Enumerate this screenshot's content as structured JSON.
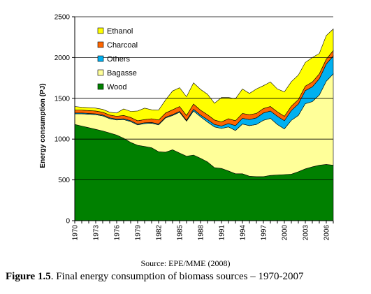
{
  "chart_data": {
    "type": "area",
    "stacked": true,
    "ylabel": "Energy consumption (PJ)",
    "ylim": [
      0,
      2500
    ],
    "yticks": [
      0,
      500,
      1000,
      1500,
      2000,
      2500
    ],
    "xlim": [
      1970,
      2007
    ],
    "xticks": [
      "1970",
      "1973",
      "1976",
      "1979",
      "1982",
      "1985",
      "1988",
      "1991",
      "1994",
      "1997",
      "2000",
      "2003",
      "2006"
    ],
    "grid": "horizontal gridlines",
    "legend_position": "top-left",
    "x": [
      1970,
      1971,
      1972,
      1973,
      1974,
      1975,
      1976,
      1977,
      1978,
      1979,
      1980,
      1981,
      1982,
      1983,
      1984,
      1985,
      1986,
      1987,
      1988,
      1989,
      1990,
      1991,
      1992,
      1993,
      1994,
      1995,
      1996,
      1997,
      1998,
      1999,
      2000,
      2001,
      2002,
      2003,
      2004,
      2005,
      2006,
      2007
    ],
    "series": [
      {
        "name": "Wood",
        "color": "#008000",
        "values": [
          1180,
          1160,
          1140,
          1120,
          1100,
          1075,
          1050,
          1010,
          960,
          925,
          910,
          895,
          845,
          840,
          870,
          830,
          790,
          805,
          765,
          720,
          650,
          640,
          610,
          575,
          575,
          545,
          540,
          540,
          555,
          560,
          565,
          570,
          600,
          635,
          660,
          680,
          690,
          680
        ]
      },
      {
        "name": "Bagasse",
        "color": "#ffff99",
        "values": [
          130,
          150,
          165,
          180,
          185,
          175,
          185,
          230,
          255,
          250,
          280,
          300,
          330,
          420,
          420,
          500,
          430,
          540,
          510,
          490,
          500,
          490,
          540,
          530,
          610,
          620,
          640,
          690,
          700,
          620,
          560,
          660,
          690,
          800,
          800,
          860,
          1020,
          1120
        ]
      },
      {
        "name": "Others",
        "color": "#00b0f0",
        "values": [
          10,
          10,
          10,
          10,
          10,
          10,
          10,
          10,
          10,
          10,
          10,
          10,
          10,
          10,
          10,
          10,
          10,
          20,
          20,
          30,
          30,
          30,
          40,
          60,
          70,
          75,
          80,
          90,
          90,
          100,
          100,
          120,
          140,
          160,
          180,
          200,
          210,
          220
        ]
      },
      {
        "name": "Charcoal",
        "color": "#ff6600",
        "values": [
          35,
          35,
          35,
          35,
          35,
          35,
          35,
          40,
          40,
          40,
          40,
          45,
          50,
          50,
          60,
          60,
          60,
          65,
          60,
          60,
          55,
          50,
          60,
          60,
          60,
          60,
          55,
          55,
          55,
          55,
          55,
          55,
          55,
          55,
          60,
          60,
          60,
          65
        ]
      },
      {
        "name": "Ethanol",
        "color": "#ffff00",
        "values": [
          45,
          35,
          35,
          35,
          35,
          35,
          40,
          80,
          75,
          120,
          140,
          110,
          120,
          160,
          230,
          230,
          230,
          260,
          255,
          250,
          205,
          300,
          260,
          270,
          300,
          260,
          300,
          280,
          300,
          280,
          300,
          300,
          300,
          290,
          300,
          250,
          290,
          265
        ]
      }
    ]
  },
  "source": "Source: EPE/MME (2008)",
  "caption": {
    "label": "Figure 1.5",
    "text": ". Final energy consumption of biomass sources – 1970-2007"
  }
}
